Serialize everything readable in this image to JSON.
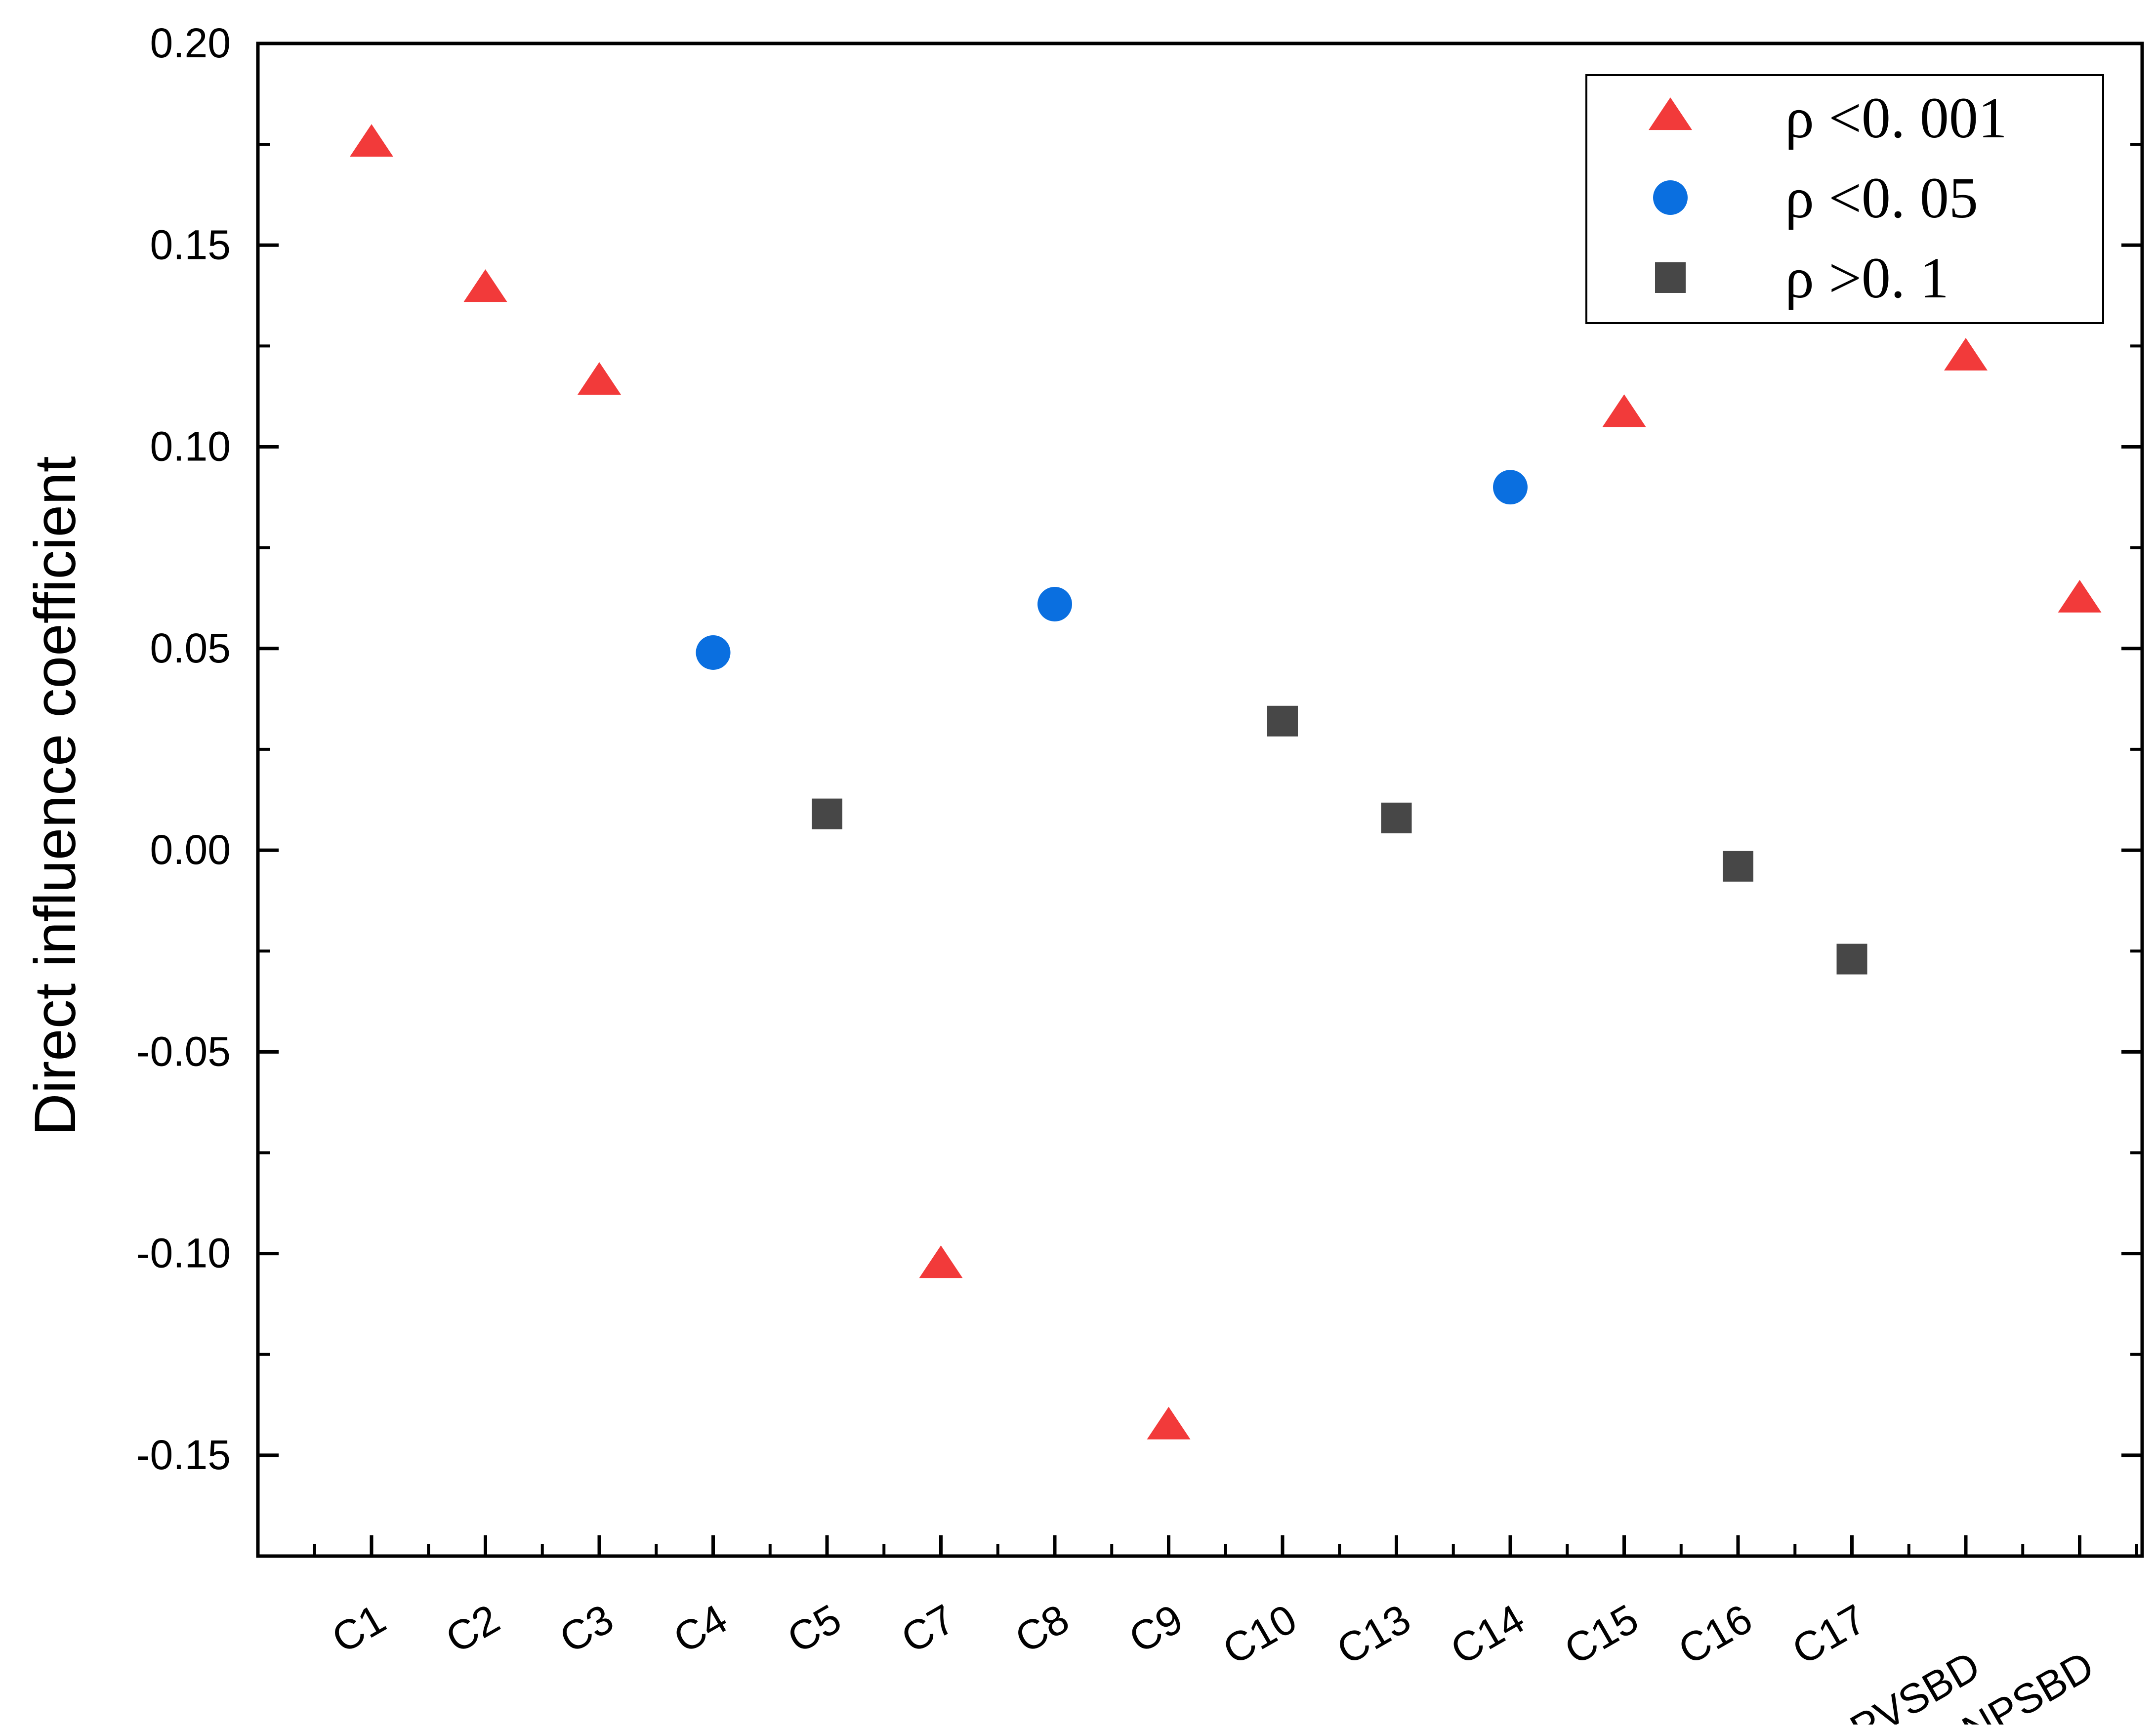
{
  "chart_data": {
    "type": "scatter",
    "ylabel": "Direct influence coefficient",
    "xlabel": "",
    "ylim": [
      -0.175,
      0.2
    ],
    "y_ticks": [
      "0.20",
      "0.15",
      "0.10",
      "0.05",
      "0.00",
      "-0.05",
      "-0.10",
      "-0.15"
    ],
    "y_tick_values": [
      0.2,
      0.15,
      0.1,
      0.05,
      0.0,
      -0.05,
      -0.1,
      -0.15
    ],
    "categories": [
      "C1",
      "C2",
      "C3",
      "C4",
      "C5",
      "C7",
      "C8",
      "C9",
      "C10",
      "C13",
      "C14",
      "C15",
      "C16",
      "C17",
      "PVSBD",
      "NPSBD"
    ],
    "values": [
      0.175,
      0.139,
      0.116,
      0.049,
      0.009,
      -0.103,
      0.061,
      -0.143,
      0.032,
      0.008,
      0.09,
      0.108,
      -0.004,
      -0.027,
      0.122,
      0.062
    ],
    "groups": [
      "p001",
      "p001",
      "p001",
      "p05",
      "p1",
      "p001",
      "p05",
      "p001",
      "p1",
      "p1",
      "p05",
      "p001",
      "p1",
      "p1",
      "p001",
      "p001"
    ],
    "series": [
      {
        "id": "p001",
        "name": "ρ<0.001",
        "marker": "triangle",
        "color": "#f23a3a"
      },
      {
        "id": "p05",
        "name": "ρ<0.05",
        "marker": "circle",
        "color": "#0a6fe0"
      },
      {
        "id": "p1",
        "name": "ρ>0.1",
        "marker": "square",
        "color": "#474747"
      }
    ],
    "legend_labels": [
      "ρ <0. 001",
      "ρ <0. 05",
      "ρ >0. 1"
    ],
    "legend_position": "top-right",
    "grid": false
  }
}
